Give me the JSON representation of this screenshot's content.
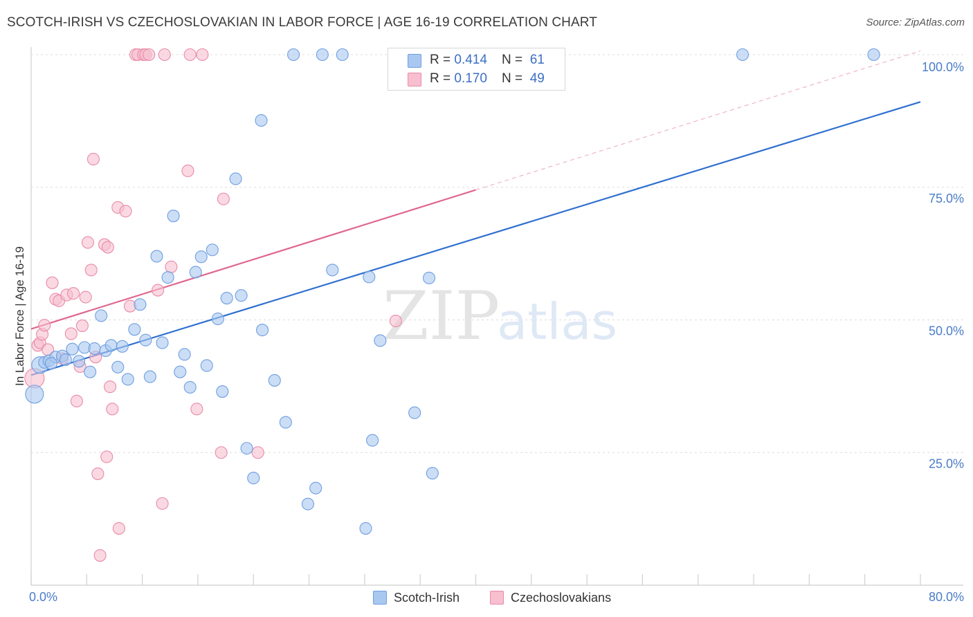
{
  "title": "SCOTCH-IRISH VS CZECHOSLOVAKIAN IN LABOR FORCE | AGE 16-19 CORRELATION CHART",
  "source": "Source: ZipAtlas.com",
  "watermark": {
    "zip": "ZIP",
    "atlas": "atlas"
  },
  "colors": {
    "blue_fill": "#a9c8f0",
    "blue_stroke": "#6f9ee0",
    "blue_line": "#2f6fcf",
    "pink_fill": "#f7bfd0",
    "pink_stroke": "#e98aa8",
    "pink_line": "#e0678f",
    "tick_text": "#4a7cc9",
    "grid": "#dcdcdc"
  },
  "legend": {
    "rows": [
      {
        "r_label": "R = ",
        "r_value": "0.414",
        "n_label": "N = ",
        "n_value": "61"
      },
      {
        "r_label": "R = ",
        "r_value": "0.170",
        "n_label": "N = ",
        "n_value": "49"
      }
    ]
  },
  "bottom_legend": {
    "series1": "Scotch-Irish",
    "series2": "Czechoslovakians"
  },
  "chart_data": {
    "type": "scatter",
    "ylabel": "In Labor Force | Age 16-19",
    "xlim": [
      0,
      80
    ],
    "ylim": [
      0,
      100
    ],
    "x_tick_labels": [
      "0.0%",
      "80.0%"
    ],
    "y_ticks": [
      {
        "value": 25,
        "label": "25.0%"
      },
      {
        "value": 50,
        "label": "50.0%"
      },
      {
        "value": 75,
        "label": "75.0%"
      },
      {
        "value": 100,
        "label": "100.0%"
      }
    ],
    "grid": "horizontal dashed",
    "legend_position": "top-center",
    "series": [
      {
        "name": "Scotch-Irish",
        "color": "#a9c8f0",
        "trend": {
          "x": [
            0,
            80
          ],
          "y": [
            39.6,
            91.1
          ]
        },
        "points": [
          {
            "x": 0.3,
            "y": 36
          },
          {
            "x": 0.8,
            "y": 41.5
          },
          {
            "x": 1.2,
            "y": 42
          },
          {
            "x": 1.6,
            "y": 42.3
          },
          {
            "x": 2.2,
            "y": 43
          },
          {
            "x": 2.8,
            "y": 43.2
          },
          {
            "x": 3.1,
            "y": 42.5
          },
          {
            "x": 3.7,
            "y": 44.5
          },
          {
            "x": 4.3,
            "y": 42.2
          },
          {
            "x": 4.8,
            "y": 44.8
          },
          {
            "x": 5.3,
            "y": 40.2
          },
          {
            "x": 5.7,
            "y": 44.6
          },
          {
            "x": 6.3,
            "y": 50.8
          },
          {
            "x": 6.7,
            "y": 44.2
          },
          {
            "x": 7.2,
            "y": 45.2
          },
          {
            "x": 7.8,
            "y": 41.1
          },
          {
            "x": 8.2,
            "y": 45
          },
          {
            "x": 8.7,
            "y": 38.8
          },
          {
            "x": 9.3,
            "y": 48.2
          },
          {
            "x": 9.8,
            "y": 52.9
          },
          {
            "x": 10.3,
            "y": 46.2
          },
          {
            "x": 10.7,
            "y": 39.3
          },
          {
            "x": 11.3,
            "y": 62
          },
          {
            "x": 11.8,
            "y": 45.7
          },
          {
            "x": 12.3,
            "y": 58
          },
          {
            "x": 12.8,
            "y": 69.6
          },
          {
            "x": 13.4,
            "y": 40.2
          },
          {
            "x": 13.8,
            "y": 43.5
          },
          {
            "x": 14.3,
            "y": 37.3
          },
          {
            "x": 14.8,
            "y": 59
          },
          {
            "x": 15.3,
            "y": 61.9
          },
          {
            "x": 15.8,
            "y": 41.4
          },
          {
            "x": 16.3,
            "y": 63.2
          },
          {
            "x": 16.8,
            "y": 50.2
          },
          {
            "x": 17.2,
            "y": 36.5
          },
          {
            "x": 17.6,
            "y": 54.1
          },
          {
            "x": 18.4,
            "y": 76.6
          },
          {
            "x": 18.9,
            "y": 54.6
          },
          {
            "x": 19.4,
            "y": 25.8
          },
          {
            "x": 20,
            "y": 20.2
          },
          {
            "x": 20.7,
            "y": 87.6
          },
          {
            "x": 20.8,
            "y": 48.1
          },
          {
            "x": 21.9,
            "y": 38.6
          },
          {
            "x": 22.9,
            "y": 30.7
          },
          {
            "x": 23.6,
            "y": 100
          },
          {
            "x": 24.9,
            "y": 15.3
          },
          {
            "x": 25.6,
            "y": 18.3
          },
          {
            "x": 26.2,
            "y": 100
          },
          {
            "x": 27.1,
            "y": 59.4
          },
          {
            "x": 28,
            "y": 100
          },
          {
            "x": 30.1,
            "y": 10.7
          },
          {
            "x": 30.4,
            "y": 58.1
          },
          {
            "x": 30.7,
            "y": 27.3
          },
          {
            "x": 31.4,
            "y": 46.1
          },
          {
            "x": 33.1,
            "y": 100
          },
          {
            "x": 34.5,
            "y": 32.5
          },
          {
            "x": 35.8,
            "y": 57.9
          },
          {
            "x": 36.1,
            "y": 21.1
          },
          {
            "x": 64,
            "y": 100
          },
          {
            "x": 75.8,
            "y": 100
          },
          {
            "x": 1.8,
            "y": 41.8
          }
        ]
      },
      {
        "name": "Czechoslovakians",
        "color": "#f7bfd0",
        "trend": {
          "x": [
            0,
            40
          ],
          "y": [
            48.3,
            74.5
          ]
        },
        "trend_extension": {
          "x": [
            40,
            80
          ],
          "y": [
            74.5,
            100.7
          ]
        },
        "points": [
          {
            "x": 0.3,
            "y": 39
          },
          {
            "x": 0.6,
            "y": 45.2
          },
          {
            "x": 0.8,
            "y": 45.7
          },
          {
            "x": 1,
            "y": 47.3
          },
          {
            "x": 1.2,
            "y": 49
          },
          {
            "x": 1.5,
            "y": 44.4
          },
          {
            "x": 1.9,
            "y": 57
          },
          {
            "x": 2.2,
            "y": 53.9
          },
          {
            "x": 2.5,
            "y": 53.6
          },
          {
            "x": 2.8,
            "y": 42.7
          },
          {
            "x": 3.2,
            "y": 54.7
          },
          {
            "x": 3.6,
            "y": 47.4
          },
          {
            "x": 3.8,
            "y": 55
          },
          {
            "x": 4.1,
            "y": 34.7
          },
          {
            "x": 4.4,
            "y": 41.2
          },
          {
            "x": 4.6,
            "y": 48.9
          },
          {
            "x": 4.9,
            "y": 54.3
          },
          {
            "x": 5.1,
            "y": 64.6
          },
          {
            "x": 5.4,
            "y": 59.4
          },
          {
            "x": 5.6,
            "y": 80.3
          },
          {
            "x": 5.8,
            "y": 43
          },
          {
            "x": 6,
            "y": 21
          },
          {
            "x": 6.2,
            "y": 5.6
          },
          {
            "x": 6.6,
            "y": 64.2
          },
          {
            "x": 6.8,
            "y": 24.2
          },
          {
            "x": 6.9,
            "y": 63.7
          },
          {
            "x": 7.1,
            "y": 37.4
          },
          {
            "x": 7.3,
            "y": 33.2
          },
          {
            "x": 7.8,
            "y": 71.2
          },
          {
            "x": 7.9,
            "y": 10.7
          },
          {
            "x": 8.5,
            "y": 70.5
          },
          {
            "x": 8.9,
            "y": 52.6
          },
          {
            "x": 9.4,
            "y": 100
          },
          {
            "x": 9.6,
            "y": 100
          },
          {
            "x": 10.1,
            "y": 100
          },
          {
            "x": 10.3,
            "y": 100
          },
          {
            "x": 10.6,
            "y": 100
          },
          {
            "x": 11.4,
            "y": 55.6
          },
          {
            "x": 11.8,
            "y": 15.4
          },
          {
            "x": 12,
            "y": 100
          },
          {
            "x": 12.6,
            "y": 60
          },
          {
            "x": 14.1,
            "y": 78.1
          },
          {
            "x": 14.3,
            "y": 100
          },
          {
            "x": 14.9,
            "y": 33.2
          },
          {
            "x": 15.4,
            "y": 100
          },
          {
            "x": 17.1,
            "y": 25
          },
          {
            "x": 17.3,
            "y": 72.8
          },
          {
            "x": 20.4,
            "y": 25
          },
          {
            "x": 32.8,
            "y": 49.8
          }
        ]
      }
    ]
  }
}
